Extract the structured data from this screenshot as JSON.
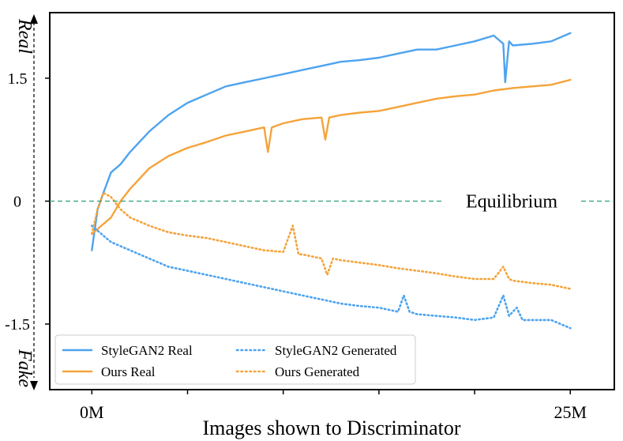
{
  "chart_data": {
    "type": "line",
    "title": "",
    "xlabel": "Images shown to Discriminator",
    "ylabel_top": "Real",
    "ylabel_bottom": "Fake",
    "x_unit": "M images",
    "xlim": [
      -2.2,
      27.3
    ],
    "ylim": [
      -2.3,
      2.3
    ],
    "x_tick_labels": [
      {
        "x": 0,
        "label": "0M"
      },
      {
        "x": 25,
        "label": "25M"
      }
    ],
    "x_minor_ticks": [
      5,
      10,
      15,
      20,
      25
    ],
    "y_ticks": [
      {
        "y": 1.5,
        "label": "1.5"
      },
      {
        "y": 0,
        "label": "0"
      },
      {
        "y": -1.5,
        "label": "-1.5"
      }
    ],
    "equilibrium": {
      "y": 0,
      "label": "Equilibrium",
      "color": "#2ca07a"
    },
    "series": [
      {
        "name": "StyleGAN2 Real",
        "style": "solid",
        "color": "#4da3ef",
        "points": [
          [
            0,
            -0.6
          ],
          [
            0.3,
            -0.1
          ],
          [
            0.6,
            0.1
          ],
          [
            1,
            0.35
          ],
          [
            1.5,
            0.45
          ],
          [
            2,
            0.6
          ],
          [
            3,
            0.85
          ],
          [
            4,
            1.05
          ],
          [
            5,
            1.2
          ],
          [
            6,
            1.3
          ],
          [
            7,
            1.4
          ],
          [
            8,
            1.45
          ],
          [
            9,
            1.5
          ],
          [
            10,
            1.55
          ],
          [
            11,
            1.6
          ],
          [
            12,
            1.65
          ],
          [
            13,
            1.7
          ],
          [
            14,
            1.72
          ],
          [
            15,
            1.75
          ],
          [
            16,
            1.8
          ],
          [
            17,
            1.85
          ],
          [
            18,
            1.85
          ],
          [
            19,
            1.9
          ],
          [
            20,
            1.95
          ],
          [
            21,
            2.02
          ],
          [
            21.5,
            1.92
          ],
          [
            21.6,
            1.45
          ],
          [
            21.8,
            1.95
          ],
          [
            22,
            1.9
          ],
          [
            23,
            1.92
          ],
          [
            24,
            1.95
          ],
          [
            25,
            2.05
          ]
        ]
      },
      {
        "name": "Ours Real",
        "style": "solid",
        "color": "#f5a33a",
        "points": [
          [
            0,
            -0.4
          ],
          [
            0.5,
            -0.3
          ],
          [
            1,
            -0.2
          ],
          [
            1.5,
            0
          ],
          [
            2,
            0.15
          ],
          [
            3,
            0.4
          ],
          [
            4,
            0.55
          ],
          [
            5,
            0.65
          ],
          [
            6,
            0.72
          ],
          [
            7,
            0.8
          ],
          [
            8,
            0.85
          ],
          [
            9,
            0.9
          ],
          [
            9.2,
            0.6
          ],
          [
            9.4,
            0.9
          ],
          [
            10,
            0.95
          ],
          [
            11,
            1
          ],
          [
            12,
            1.02
          ],
          [
            12.2,
            0.75
          ],
          [
            12.4,
            1.02
          ],
          [
            13,
            1.05
          ],
          [
            14,
            1.08
          ],
          [
            15,
            1.1
          ],
          [
            16,
            1.15
          ],
          [
            17,
            1.2
          ],
          [
            18,
            1.25
          ],
          [
            19,
            1.28
          ],
          [
            20,
            1.3
          ],
          [
            21,
            1.35
          ],
          [
            22,
            1.38
          ],
          [
            23,
            1.4
          ],
          [
            24,
            1.42
          ],
          [
            25,
            1.48
          ]
        ]
      },
      {
        "name": "StyleGAN2 Generated",
        "style": "dotted",
        "color": "#4da3ef",
        "points": [
          [
            0,
            -0.3
          ],
          [
            0.5,
            -0.4
          ],
          [
            1,
            -0.5
          ],
          [
            2,
            -0.6
          ],
          [
            3,
            -0.7
          ],
          [
            4,
            -0.8
          ],
          [
            5,
            -0.85
          ],
          [
            6,
            -0.9
          ],
          [
            7,
            -0.95
          ],
          [
            8,
            -1
          ],
          [
            9,
            -1.05
          ],
          [
            10,
            -1.1
          ],
          [
            11,
            -1.15
          ],
          [
            12,
            -1.2
          ],
          [
            13,
            -1.25
          ],
          [
            14,
            -1.28
          ],
          [
            15,
            -1.3
          ],
          [
            16,
            -1.35
          ],
          [
            16.3,
            -1.15
          ],
          [
            16.6,
            -1.35
          ],
          [
            17,
            -1.38
          ],
          [
            18,
            -1.4
          ],
          [
            19,
            -1.42
          ],
          [
            20,
            -1.45
          ],
          [
            21,
            -1.42
          ],
          [
            21.5,
            -1.15
          ],
          [
            21.8,
            -1.4
          ],
          [
            22.2,
            -1.3
          ],
          [
            22.5,
            -1.45
          ],
          [
            23,
            -1.45
          ],
          [
            24,
            -1.45
          ],
          [
            25,
            -1.55
          ]
        ]
      },
      {
        "name": "Ours Generated",
        "style": "dotted",
        "color": "#f5a33a",
        "points": [
          [
            0,
            -0.4
          ],
          [
            0.3,
            -0.1
          ],
          [
            0.6,
            0.1
          ],
          [
            1,
            0.05
          ],
          [
            1.5,
            -0.1
          ],
          [
            2,
            -0.2
          ],
          [
            3,
            -0.3
          ],
          [
            4,
            -0.38
          ],
          [
            5,
            -0.42
          ],
          [
            6,
            -0.45
          ],
          [
            7,
            -0.5
          ],
          [
            8,
            -0.55
          ],
          [
            9,
            -0.6
          ],
          [
            10,
            -0.62
          ],
          [
            10.5,
            -0.3
          ],
          [
            10.8,
            -0.65
          ],
          [
            11,
            -0.65
          ],
          [
            12,
            -0.7
          ],
          [
            12.3,
            -0.9
          ],
          [
            12.6,
            -0.7
          ],
          [
            13,
            -0.72
          ],
          [
            14,
            -0.75
          ],
          [
            15,
            -0.78
          ],
          [
            16,
            -0.82
          ],
          [
            17,
            -0.85
          ],
          [
            18,
            -0.88
          ],
          [
            19,
            -0.92
          ],
          [
            20,
            -0.95
          ],
          [
            21,
            -0.95
          ],
          [
            21.5,
            -0.8
          ],
          [
            21.8,
            -0.95
          ],
          [
            22,
            -0.97
          ],
          [
            23,
            -1
          ],
          [
            24,
            -1.02
          ],
          [
            25,
            -1.07
          ]
        ]
      }
    ],
    "legend": {
      "position": "bottom-left",
      "entries": [
        {
          "label": "StyleGAN2 Real",
          "series": 0
        },
        {
          "label": "StyleGAN2 Generated",
          "series": 2
        },
        {
          "label": "Ours Real",
          "series": 1
        },
        {
          "label": "Ours Generated",
          "series": 3
        }
      ]
    }
  }
}
